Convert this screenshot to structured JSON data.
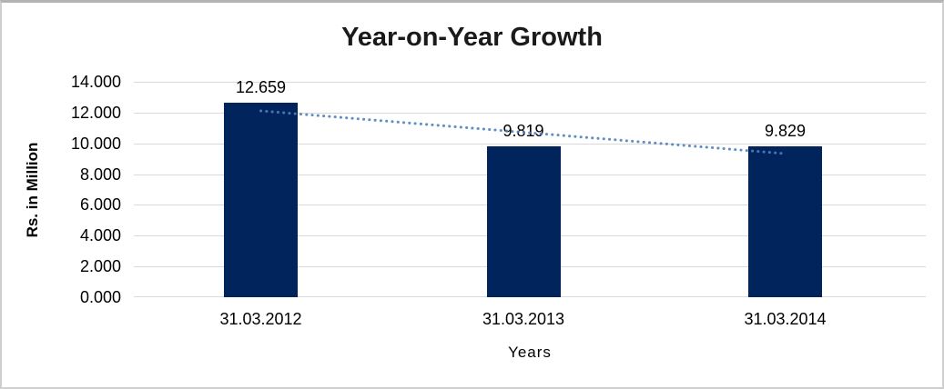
{
  "page": {
    "background_color": "#ffffff",
    "frame_border_color": "#cfcfcf"
  },
  "chart_data": {
    "type": "bar",
    "title": "Year-on-Year Growth",
    "xlabel": "Years",
    "ylabel": "Rs. in Million",
    "categories": [
      "31.03.2012",
      "31.03.2013",
      "31.03.2014"
    ],
    "values": [
      12.659,
      9.819,
      9.829
    ],
    "value_labels": [
      "12.659",
      "9.819",
      "9.829"
    ],
    "y_ticks": [
      "0.000",
      "2.000",
      "4.000",
      "6.000",
      "8.000",
      "10.000",
      "12.000",
      "14.000"
    ],
    "ylim": [
      0,
      14
    ],
    "grid": true,
    "legend": "none",
    "bar_color": "#02245c",
    "gridline_color": "#d9d9d9",
    "label_color": "#000000",
    "title_color": "#1a1a1a",
    "trendline": {
      "type": "linear",
      "style": "dotted",
      "color": "#4f81bd",
      "start_index": 0,
      "start_value": 12.11,
      "end_index": 2,
      "end_value": 9.33
    }
  }
}
